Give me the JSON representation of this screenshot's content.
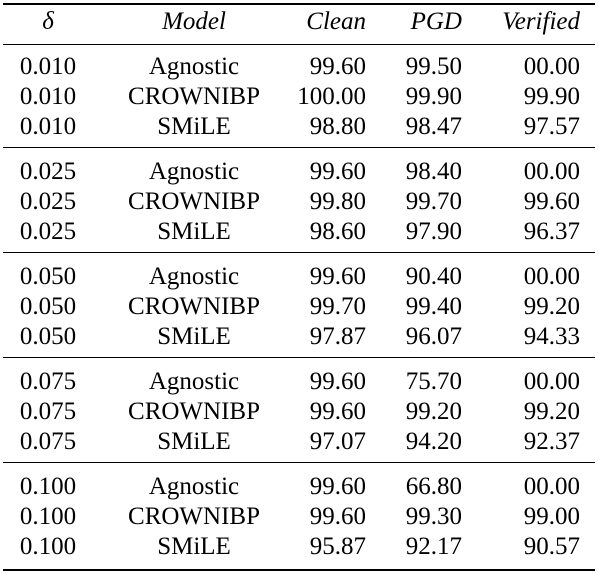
{
  "table": {
    "headers": [
      "δ",
      "Model",
      "Clean",
      "PGD",
      "Verified"
    ],
    "groups": [
      [
        [
          "0.010",
          "Agnostic",
          "99.60",
          "99.50",
          "00.00"
        ],
        [
          "0.010",
          "CROWNIBP",
          "100.00",
          "99.90",
          "99.90"
        ],
        [
          "0.010",
          "SMiLE",
          "98.80",
          "98.47",
          "97.57"
        ]
      ],
      [
        [
          "0.025",
          "Agnostic",
          "99.60",
          "98.40",
          "00.00"
        ],
        [
          "0.025",
          "CROWNIBP",
          "99.80",
          "99.70",
          "99.60"
        ],
        [
          "0.025",
          "SMiLE",
          "98.60",
          "97.90",
          "96.37"
        ]
      ],
      [
        [
          "0.050",
          "Agnostic",
          "99.60",
          "90.40",
          "00.00"
        ],
        [
          "0.050",
          "CROWNIBP",
          "99.70",
          "99.40",
          "99.20"
        ],
        [
          "0.050",
          "SMiLE",
          "97.87",
          "96.07",
          "94.33"
        ]
      ],
      [
        [
          "0.075",
          "Agnostic",
          "99.60",
          "75.70",
          "00.00"
        ],
        [
          "0.075",
          "CROWNIBP",
          "99.60",
          "99.20",
          "99.20"
        ],
        [
          "0.075",
          "SMiLE",
          "97.07",
          "94.20",
          "92.37"
        ]
      ],
      [
        [
          "0.100",
          "Agnostic",
          "99.60",
          "66.80",
          "00.00"
        ],
        [
          "0.100",
          "CROWNIBP",
          "99.60",
          "99.30",
          "99.00"
        ],
        [
          "0.100",
          "SMiLE",
          "95.87",
          "92.17",
          "90.57"
        ]
      ]
    ]
  }
}
